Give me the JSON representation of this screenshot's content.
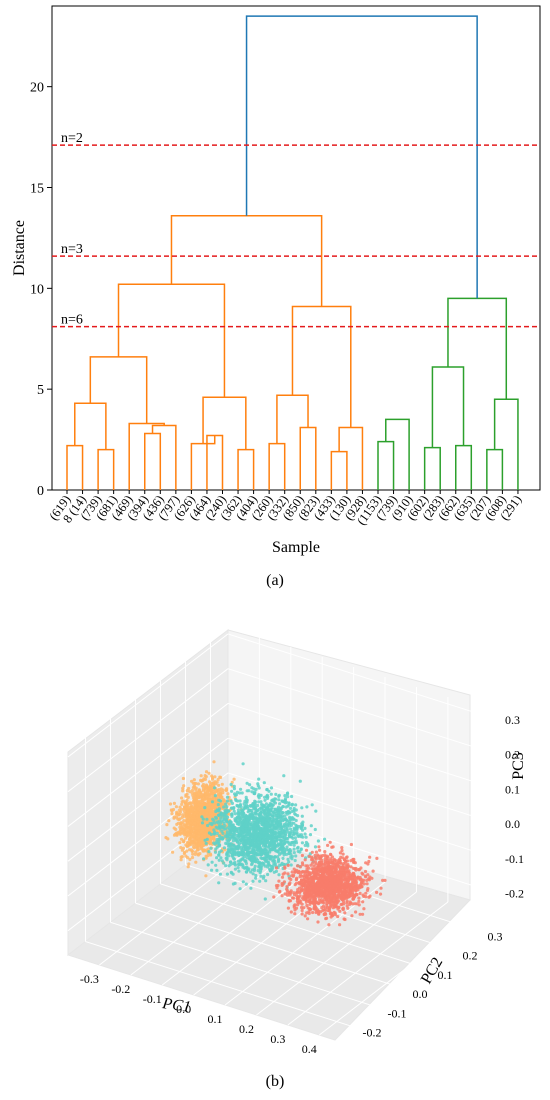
{
  "chart_data": [
    {
      "type": "dendrogram",
      "caption": "(a)",
      "xlabel": "Sample",
      "ylabel": "Distance",
      "ylim": [
        0,
        24
      ],
      "yticks": [
        0,
        5,
        10,
        15,
        20
      ],
      "leaves": [
        "(619)",
        "8 (14)",
        "(739)",
        "(681)",
        "(469)",
        "(394)",
        "(436)",
        "(797)",
        "(626)",
        "(464)",
        "(240)",
        "(362)",
        "(404)",
        "(260)",
        "(332)",
        "(850)",
        "(823)",
        "(433)",
        "(130)",
        "(928)",
        "(1153)",
        "(739)",
        "(910)",
        "(602)",
        "(283)",
        "(662)",
        "(635)",
        "(207)",
        "(608)",
        "(291)"
      ],
      "cluster_colors": {
        "orange": "#ff7f0e",
        "green": "#2ca02c",
        "blue": "#1f77b4"
      },
      "merges": [
        {
          "a": 0,
          "b": 1,
          "d": 2.2,
          "color": "orange"
        },
        {
          "a": 2,
          "b": 3,
          "d": 2.0,
          "color": "orange"
        },
        {
          "a": 30,
          "b": 31,
          "d": 4.3,
          "color": "orange"
        },
        {
          "a": 5,
          "b": 6,
          "d": 2.8,
          "color": "orange"
        },
        {
          "a": 33,
          "b": 7,
          "d": 3.2,
          "color": "orange"
        },
        {
          "a": 4,
          "b": 34,
          "d": 3.3,
          "color": "orange"
        },
        {
          "a": 32,
          "b": 35,
          "d": 6.6,
          "color": "orange"
        },
        {
          "a": 9,
          "b": 10,
          "d": 2.7,
          "color": "orange"
        },
        {
          "a": 8,
          "b": 37,
          "d": 2.3,
          "color": "orange"
        },
        {
          "a": 11,
          "b": 12,
          "d": 2.0,
          "color": "orange"
        },
        {
          "a": 38,
          "b": 39,
          "d": 4.6,
          "color": "orange"
        },
        {
          "a": 36,
          "b": 40,
          "d": 10.2,
          "color": "orange"
        },
        {
          "a": 13,
          "b": 14,
          "d": 2.3,
          "color": "orange"
        },
        {
          "a": 15,
          "b": 16,
          "d": 3.1,
          "color": "orange"
        },
        {
          "a": 42,
          "b": 43,
          "d": 4.7,
          "color": "orange"
        },
        {
          "a": 17,
          "b": 18,
          "d": 1.9,
          "color": "orange"
        },
        {
          "a": 45,
          "b": 19,
          "d": 3.1,
          "color": "orange"
        },
        {
          "a": 44,
          "b": 46,
          "d": 9.1,
          "color": "orange"
        },
        {
          "a": 41,
          "b": 47,
          "d": 13.6,
          "color": "orange"
        },
        {
          "a": 20,
          "b": 21,
          "d": 2.4,
          "color": "green"
        },
        {
          "a": 49,
          "b": 22,
          "d": 3.5,
          "color": "green"
        },
        {
          "a": 23,
          "b": 24,
          "d": 2.1,
          "color": "green"
        },
        {
          "a": 25,
          "b": 26,
          "d": 2.2,
          "color": "green"
        },
        {
          "a": 51,
          "b": 52,
          "d": 6.1,
          "color": "green"
        },
        {
          "a": 27,
          "b": 28,
          "d": 2.0,
          "color": "green"
        },
        {
          "a": 29,
          "b": 54,
          "d": 4.5,
          "color": "green"
        },
        {
          "a": 53,
          "b": 55,
          "d": 9.5,
          "color": "green"
        },
        {
          "a": 48,
          "b": 56,
          "d": 23.5,
          "color": "blue"
        }
      ],
      "cut_lines": [
        {
          "label": "n=2",
          "d": 17.1
        },
        {
          "label": "n=3",
          "d": 11.6
        },
        {
          "label": "n=6",
          "d": 8.1
        }
      ]
    },
    {
      "type": "scatter3d",
      "caption": "(b)",
      "xlabel": "PC1",
      "ylabel": "PC2",
      "zlabel": "PC3",
      "xticks": [
        -0.3,
        -0.2,
        -0.1,
        0.0,
        0.1,
        0.2,
        0.3,
        0.4
      ],
      "yticks": [
        -0.2,
        -0.1,
        0.0,
        0.1,
        0.2,
        0.3
      ],
      "zticks": [
        -0.2,
        -0.1,
        0.0,
        0.1,
        0.2,
        0.3
      ],
      "xlim": [
        -0.4,
        0.45
      ],
      "ylim": [
        -0.27,
        0.37
      ],
      "zlim": [
        -0.27,
        0.32
      ],
      "clusters": [
        {
          "color": "#ffb86b",
          "center": [
            -0.2,
            0.02,
            0.02
          ],
          "spread": [
            0.05,
            0.07,
            0.08
          ],
          "n": 1400
        },
        {
          "color": "#5fd1c8",
          "center": [
            -0.02,
            0.02,
            0.03
          ],
          "spread": [
            0.1,
            0.09,
            0.09
          ],
          "n": 1700
        },
        {
          "color": "#f87c6b",
          "center": [
            0.15,
            0.08,
            -0.1
          ],
          "spread": [
            0.09,
            0.08,
            0.05
          ],
          "n": 1400
        }
      ]
    }
  ]
}
